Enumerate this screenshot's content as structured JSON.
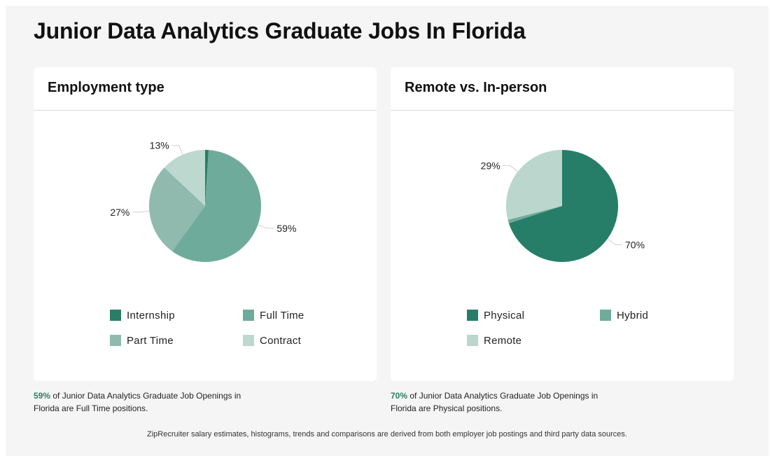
{
  "page": {
    "title": "Junior Data Analytics Graduate Jobs In Florida",
    "footer": "ZipRecruiter salary estimates, histograms, trends and comparisons are derived from both employer job postings and third party data sources."
  },
  "colors": {
    "Internship": "#2a7d67",
    "Full Time": "#6fab9a",
    "Part Time": "#8fbaad",
    "Contract": "#bcd8cf",
    "Physical": "#267e68",
    "Hybrid": "#6fab9a",
    "Remote": "#bad6cd",
    "highlight": "#2f7d62"
  },
  "chart_data": [
    {
      "type": "pie",
      "title": "Employment type",
      "categories": [
        "Internship",
        "Full Time",
        "Part Time",
        "Contract"
      ],
      "values": [
        1,
        59,
        27,
        13
      ],
      "labels": [
        "",
        "59%",
        "27%",
        "13%"
      ],
      "legend_placement": "bottom",
      "caption": {
        "highlight": "59%",
        "text": " of Junior Data Analytics Graduate Job Openings in Florida are Full Time positions."
      }
    },
    {
      "type": "pie",
      "title": "Remote vs. In-person",
      "categories": [
        "Physical",
        "Hybrid",
        "Remote"
      ],
      "values": [
        70,
        1,
        29
      ],
      "labels": [
        "70%",
        "",
        "29%"
      ],
      "legend_placement": "bottom",
      "caption": {
        "highlight": "70%",
        "text": " of Junior Data Analytics Graduate Job Openings in Florida are Physical positions."
      }
    }
  ]
}
